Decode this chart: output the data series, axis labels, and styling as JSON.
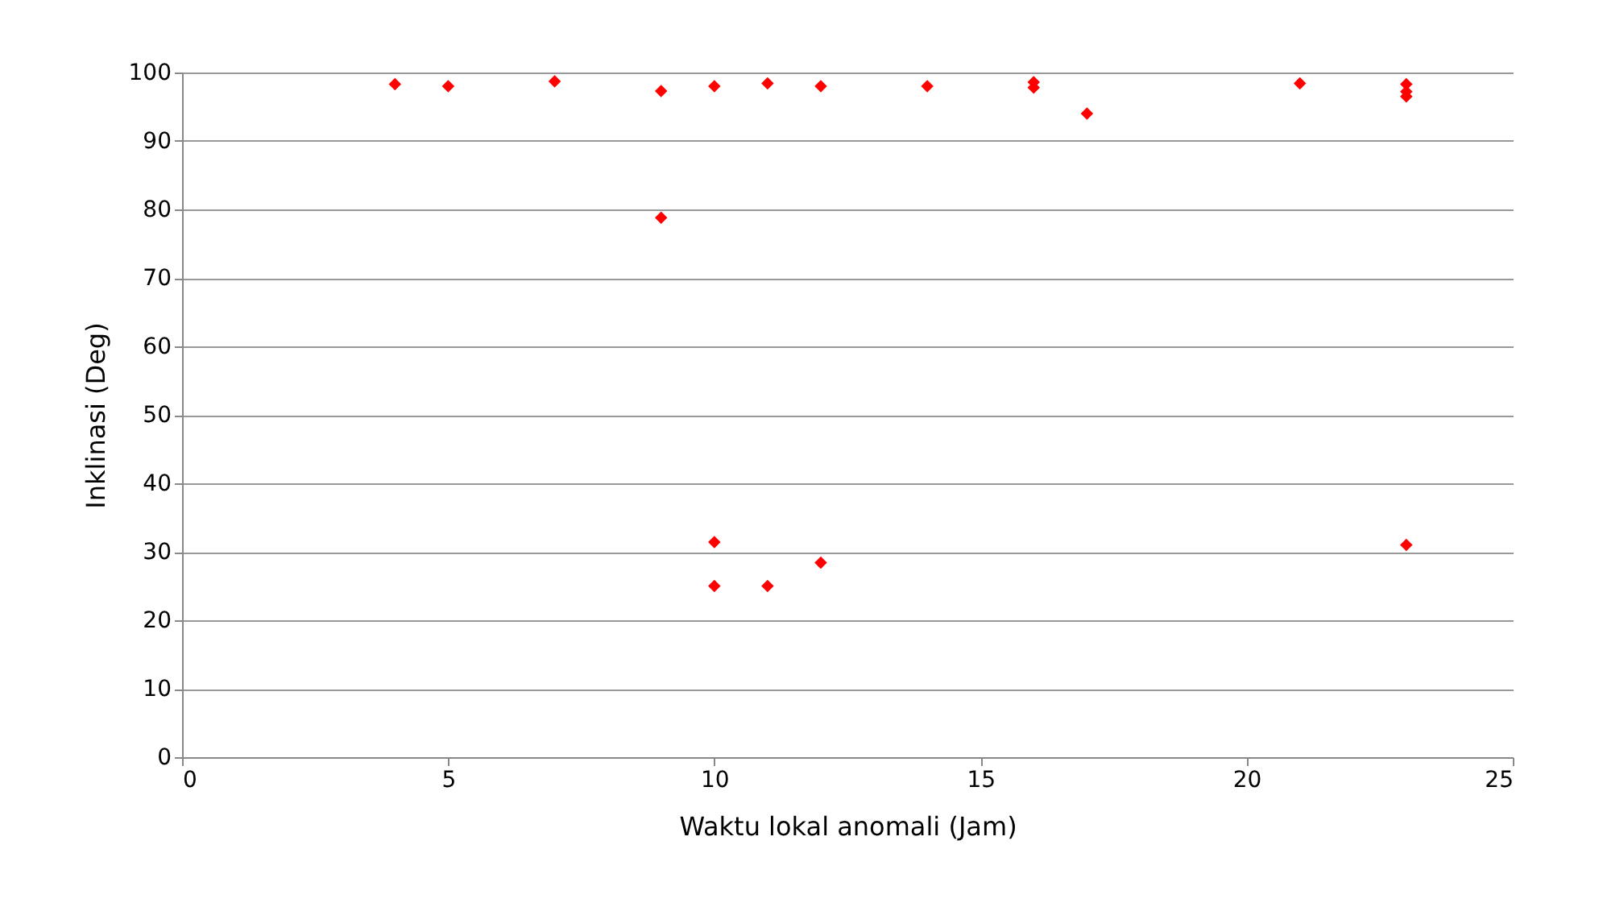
{
  "chart_data": {
    "type": "scatter",
    "xlabel": "Waktu lokal anomali (Jam)",
    "ylabel": "Inklinasi (Deg)",
    "x": [
      4,
      5,
      7,
      9,
      9,
      10,
      10,
      10,
      11,
      11,
      12,
      12,
      14,
      16,
      16,
      17,
      21,
      23,
      23,
      23,
      23
    ],
    "series": [
      {
        "color": "#ff0000",
        "values": [
          98.3,
          98,
          98.7,
          97.3,
          78.8,
          98,
          31.4,
          25,
          98.4,
          25,
          98,
          28.4,
          98,
          98.6,
          97.8,
          94,
          98.4,
          98.3,
          97.2,
          96.5,
          31
        ]
      }
    ],
    "xlim": [
      0,
      25
    ],
    "xticks": [
      0,
      5,
      10,
      15,
      20,
      25
    ],
    "ylim": [
      0,
      100
    ],
    "yticks": [
      0,
      10,
      20,
      30,
      40,
      50,
      60,
      70,
      80,
      90,
      100
    ],
    "grid": "y",
    "marker": "diamond",
    "legend": false
  }
}
